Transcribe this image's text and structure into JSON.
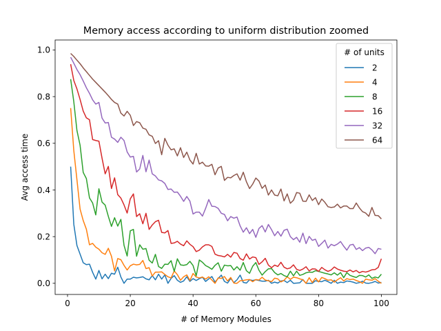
{
  "chart_data": {
    "type": "line",
    "title": "Memory access according to uniform distribution zoomed",
    "xlabel": "# of Memory Modules",
    "ylabel": "Avg access time",
    "xlim": [
      -3.95,
      104.95
    ],
    "ylim": [
      -0.0478,
      1.0426
    ],
    "xticks": [
      0,
      20,
      40,
      60,
      80,
      100
    ],
    "xtick_labels": [
      "0",
      "20",
      "40",
      "60",
      "80",
      "100"
    ],
    "yticks": [
      0.0,
      0.2,
      0.4,
      0.6,
      0.8,
      1.0
    ],
    "ytick_labels": [
      "0.0",
      "0.2",
      "0.4",
      "0.6",
      "0.8",
      "1.0"
    ],
    "grid": false,
    "legend": {
      "title": "# of units",
      "placement": "top-right"
    },
    "x_start": 1,
    "x_end": 100,
    "x_step": 1,
    "series": [
      {
        "name": "2",
        "color": "#1f77b4",
        "values": [
          0.5,
          0.253,
          0.162,
          0.125,
          0.088,
          0.08,
          0.082,
          0.047,
          0.018,
          0.055,
          0.019,
          0.039,
          0.02,
          0.043,
          0.039,
          0.069,
          0.027,
          0.0,
          0.018,
          0.018,
          0.026,
          0.023,
          0.025,
          0.028,
          0.019,
          0.015,
          0.033,
          0.015,
          0.039,
          0.018,
          0.036,
          0.0,
          0.021,
          0.033,
          0.013,
          0.004,
          0.01,
          0.028,
          0.008,
          0.02,
          0.012,
          0.02,
          0.026,
          0.008,
          0.019,
          0.029,
          0.005,
          0.021,
          0.035,
          0.008,
          0.001,
          0.021,
          0.003,
          0.015,
          0.035,
          0.004,
          0.001,
          0.015,
          0.012,
          0.015,
          0.012,
          0.009,
          0.009,
          0.013,
          0.0,
          0.005,
          0.001,
          0.01,
          0.012,
          0.003,
          0.013,
          0.0,
          0.001,
          0.002,
          0.016,
          0.0,
          0.0,
          0.0,
          0.011,
          0.008,
          0.007,
          0.013,
          0.007,
          0.0,
          0.013,
          0.0,
          0.005,
          0.003,
          0.01,
          0.008,
          0.005,
          0.0,
          0.003,
          0.009,
          0.001,
          0.0,
          0.003,
          0.008,
          0.001,
          0.004
        ]
      },
      {
        "name": "4",
        "color": "#ff7f0e",
        "values": [
          0.751,
          0.569,
          0.444,
          0.318,
          0.269,
          0.232,
          0.165,
          0.171,
          0.155,
          0.146,
          0.131,
          0.124,
          0.15,
          0.116,
          0.053,
          0.106,
          0.101,
          0.077,
          0.057,
          0.075,
          0.082,
          0.079,
          0.081,
          0.098,
          0.063,
          0.067,
          0.031,
          0.048,
          0.048,
          0.049,
          0.038,
          0.028,
          0.023,
          0.053,
          0.037,
          0.013,
          0.028,
          0.036,
          0.012,
          0.042,
          0.027,
          0.023,
          0.027,
          0.018,
          0.028,
          0.014,
          0.0,
          0.023,
          0.021,
          0.029,
          0.01,
          0.025,
          0.001,
          0.0,
          0.011,
          0.012,
          0.015,
          0.016,
          0.007,
          0.016,
          0.014,
          0.026,
          0.014,
          0.011,
          0.007,
          0.022,
          0.019,
          0.006,
          0.013,
          0.028,
          0.017,
          0.026,
          0.024,
          0.019,
          0.015,
          0.0,
          0.024,
          0.003,
          0.022,
          0.006,
          0.025,
          0.02,
          0.013,
          0.015,
          0.005,
          0.015,
          0.024,
          0.01,
          0.02,
          0.016,
          0.018,
          0.012,
          0.007,
          0.0,
          0.018,
          0.015,
          0.013,
          0.02,
          0.009,
          0.0
        ]
      },
      {
        "name": "8",
        "color": "#2ca02c",
        "values": [
          0.875,
          0.778,
          0.655,
          0.592,
          0.475,
          0.449,
          0.366,
          0.344,
          0.293,
          0.405,
          0.348,
          0.335,
          0.287,
          0.244,
          0.281,
          0.245,
          0.274,
          0.163,
          0.117,
          0.225,
          0.231,
          0.116,
          0.165,
          0.146,
          0.149,
          0.099,
          0.087,
          0.124,
          0.072,
          0.064,
          0.082,
          0.081,
          0.097,
          0.051,
          0.105,
          0.079,
          0.077,
          0.08,
          0.094,
          0.076,
          0.032,
          0.1,
          0.09,
          0.076,
          0.069,
          0.06,
          0.077,
          0.088,
          0.052,
          0.078,
          0.075,
          0.076,
          0.057,
          0.071,
          0.056,
          0.089,
          0.054,
          0.043,
          0.073,
          0.089,
          0.056,
          0.035,
          0.05,
          0.062,
          0.063,
          0.046,
          0.036,
          0.042,
          0.033,
          0.028,
          0.052,
          0.032,
          0.052,
          0.034,
          0.038,
          0.045,
          0.048,
          0.047,
          0.054,
          0.051,
          0.047,
          0.043,
          0.04,
          0.036,
          0.045,
          0.035,
          0.046,
          0.024,
          0.046,
          0.034,
          0.029,
          0.025,
          0.034,
          0.033,
          0.027,
          0.036,
          0.021,
          0.027,
          0.023,
          0.039
        ]
      },
      {
        "name": "16",
        "color": "#d62728",
        "values": [
          0.939,
          0.869,
          0.833,
          0.788,
          0.738,
          0.709,
          0.701,
          0.616,
          0.612,
          0.609,
          0.536,
          0.469,
          0.501,
          0.406,
          0.452,
          0.38,
          0.365,
          0.336,
          0.301,
          0.362,
          0.383,
          0.286,
          0.298,
          0.255,
          0.3,
          0.231,
          0.25,
          0.264,
          0.27,
          0.218,
          0.216,
          0.226,
          0.171,
          0.173,
          0.18,
          0.168,
          0.161,
          0.182,
          0.167,
          0.157,
          0.136,
          0.142,
          0.156,
          0.165,
          0.165,
          0.158,
          0.125,
          0.119,
          0.117,
          0.113,
          0.124,
          0.112,
          0.132,
          0.129,
          0.106,
          0.099,
          0.126,
          0.104,
          0.113,
          0.11,
          0.081,
          0.092,
          0.107,
          0.078,
          0.067,
          0.078,
          0.072,
          0.09,
          0.069,
          0.062,
          0.066,
          0.079,
          0.06,
          0.055,
          0.061,
          0.071,
          0.053,
          0.062,
          0.061,
          0.051,
          0.068,
          0.058,
          0.051,
          0.057,
          0.07,
          0.061,
          0.056,
          0.052,
          0.05,
          0.057,
          0.049,
          0.055,
          0.045,
          0.051,
          0.048,
          0.052,
          0.058,
          0.059,
          0.068,
          0.105
        ]
      },
      {
        "name": "32",
        "color": "#9467bd",
        "values": [
          0.969,
          0.943,
          0.916,
          0.894,
          0.867,
          0.838,
          0.814,
          0.786,
          0.768,
          0.775,
          0.708,
          0.687,
          0.689,
          0.626,
          0.618,
          0.604,
          0.626,
          0.612,
          0.563,
          0.541,
          0.544,
          0.477,
          0.49,
          0.548,
          0.478,
          0.528,
          0.469,
          0.46,
          0.443,
          0.439,
          0.428,
          0.402,
          0.404,
          0.39,
          0.391,
          0.373,
          0.351,
          0.372,
          0.352,
          0.297,
          0.305,
          0.305,
          0.288,
          0.321,
          0.359,
          0.33,
          0.329,
          0.321,
          0.3,
          0.295,
          0.268,
          0.286,
          0.279,
          0.284,
          0.246,
          0.219,
          0.238,
          0.213,
          0.231,
          0.197,
          0.235,
          0.247,
          0.22,
          0.252,
          0.23,
          0.204,
          0.222,
          0.202,
          0.227,
          0.232,
          0.2,
          0.187,
          0.197,
          0.176,
          0.215,
          0.17,
          0.201,
          0.184,
          0.189,
          0.158,
          0.171,
          0.185,
          0.151,
          0.167,
          0.161,
          0.168,
          0.179,
          0.159,
          0.142,
          0.164,
          0.167,
          0.145,
          0.153,
          0.14,
          0.151,
          0.154,
          0.143,
          0.127,
          0.149,
          0.146
        ]
      },
      {
        "name": "64",
        "color": "#8c564b",
        "values": [
          0.985,
          0.972,
          0.956,
          0.941,
          0.923,
          0.907,
          0.891,
          0.875,
          0.861,
          0.847,
          0.833,
          0.819,
          0.804,
          0.788,
          0.775,
          0.768,
          0.729,
          0.717,
          0.737,
          0.72,
          0.676,
          0.693,
          0.688,
          0.665,
          0.66,
          0.636,
          0.63,
          0.599,
          0.611,
          0.551,
          0.621,
          0.592,
          0.572,
          0.576,
          0.546,
          0.581,
          0.539,
          0.562,
          0.528,
          0.511,
          0.557,
          0.511,
          0.519,
          0.503,
          0.502,
          0.51,
          0.465,
          0.494,
          0.501,
          0.441,
          0.454,
          0.452,
          0.462,
          0.469,
          0.442,
          0.476,
          0.435,
          0.406,
          0.425,
          0.451,
          0.438,
          0.407,
          0.421,
          0.378,
          0.4,
          0.378,
          0.375,
          0.404,
          0.353,
          0.383,
          0.343,
          0.356,
          0.389,
          0.386,
          0.352,
          0.351,
          0.379,
          0.355,
          0.367,
          0.337,
          0.361,
          0.347,
          0.328,
          0.325,
          0.327,
          0.339,
          0.323,
          0.331,
          0.331,
          0.32,
          0.32,
          0.344,
          0.323,
          0.307,
          0.301,
          0.287,
          0.325,
          0.291,
          0.29,
          0.276
        ]
      }
    ]
  }
}
